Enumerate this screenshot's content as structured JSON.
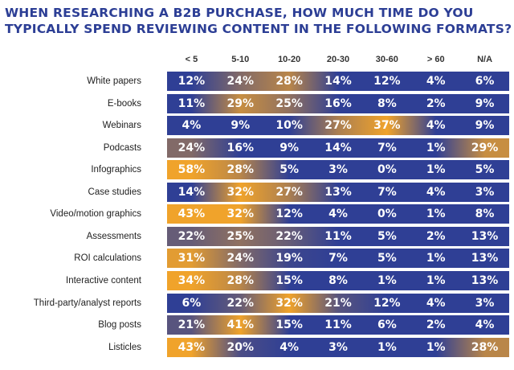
{
  "colors": {
    "title": "#2c3e95",
    "low": "#2f3f95",
    "high": "#f0a32b",
    "cell_text": "#ffffff"
  },
  "chart_data": {
    "type": "table",
    "title": "WHEN RESEARCHING A B2B PURCHASE, HOW MUCH TIME DO YOU TYPICALLY SPEND REVIEWING CONTENT IN THE FOLLOWING FORMATS?",
    "title_lines": [
      "WHEN RESEARCHING A B2B PURCHASE, HOW MUCH TIME DO YOU",
      "TYPICALLY SPEND REVIEWING CONTENT IN THE FOLLOWING FORMATS?"
    ],
    "columns": [
      "< 5",
      "5-10",
      "10-20",
      "20-30",
      "30-60",
      "> 60",
      "N/A"
    ],
    "rows": [
      {
        "label": "White papers",
        "values": [
          "12%",
          "24%",
          "28%",
          "14%",
          "12%",
          "4%",
          "6%"
        ]
      },
      {
        "label": "E-books",
        "values": [
          "11%",
          "29%",
          "25%",
          "16%",
          "8%",
          "2%",
          "9%"
        ]
      },
      {
        "label": "Webinars",
        "values": [
          "4%",
          "9%",
          "10%",
          "27%",
          "37%",
          "4%",
          "9%"
        ]
      },
      {
        "label": "Podcasts",
        "values": [
          "24%",
          "16%",
          "9%",
          "14%",
          "7%",
          "1%",
          "29%"
        ]
      },
      {
        "label": "Infographics",
        "values": [
          "58%",
          "28%",
          "5%",
          "3%",
          "0%",
          "1%",
          "5%"
        ]
      },
      {
        "label": "Case studies",
        "values": [
          "14%",
          "32%",
          "27%",
          "13%",
          "7%",
          "4%",
          "3%"
        ]
      },
      {
        "label": "Video/motion graphics",
        "values": [
          "43%",
          "32%",
          "12%",
          "4%",
          "0%",
          "1%",
          "8%"
        ]
      },
      {
        "label": "Assessments",
        "values": [
          "22%",
          "25%",
          "22%",
          "11%",
          "5%",
          "2%",
          "13%"
        ]
      },
      {
        "label": "ROI calculations",
        "values": [
          "31%",
          "24%",
          "19%",
          "7%",
          "5%",
          "1%",
          "13%"
        ]
      },
      {
        "label": "Interactive content",
        "values": [
          "34%",
          "28%",
          "15%",
          "8%",
          "1%",
          "1%",
          "13%"
        ]
      },
      {
        "label": "Third-party/analyst reports",
        "values": [
          "6%",
          "22%",
          "32%",
          "21%",
          "12%",
          "4%",
          "3%"
        ]
      },
      {
        "label": "Blog posts",
        "values": [
          "21%",
          "41%",
          "15%",
          "11%",
          "6%",
          "2%",
          "4%"
        ]
      },
      {
        "label": "Listicles",
        "values": [
          "43%",
          "20%",
          "4%",
          "3%",
          "1%",
          "1%",
          "28%"
        ]
      }
    ]
  }
}
